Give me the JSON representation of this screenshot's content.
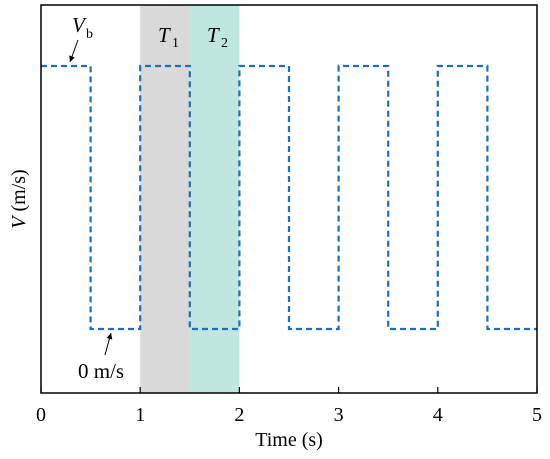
{
  "chart_data": {
    "type": "line",
    "title": "",
    "xlabel": "Time (s)",
    "ylabel_symbol": "V",
    "ylabel_unit": " (m/s)",
    "xlim": [
      0,
      5
    ],
    "x_ticks": [
      "0",
      "1",
      "2",
      "3",
      "4",
      "5"
    ],
    "ylim": [
      -0.25,
      1.25
    ],
    "y_ticks": [],
    "grid": false,
    "legend": "none",
    "series": [
      {
        "style": "dashed",
        "color": "#1f6fb5",
        "x": [
          0,
          0.5,
          0.5,
          1,
          1,
          1.5,
          1.5,
          2,
          2,
          2.5,
          2.5,
          3,
          3,
          3.5,
          3.5,
          4,
          4,
          4.5,
          4.5,
          5
        ],
        "y": [
          "Vb",
          "Vb",
          0,
          0,
          "Vb",
          "Vb",
          0,
          0,
          "Vb",
          "Vb",
          0,
          0,
          "Vb",
          "Vb",
          0,
          0,
          "Vb",
          "Vb",
          0,
          0
        ]
      }
    ],
    "shaded_regions": [
      {
        "x": [
          1,
          1.5
        ],
        "color": "#d9d9d9",
        "label_symbol": "T",
        "label_sub": "1"
      },
      {
        "x": [
          1.5,
          2
        ],
        "color": "#bfe6df",
        "label_symbol": "T",
        "label_sub": "2"
      }
    ],
    "annotations": [
      {
        "symbol": "V",
        "sub": "b",
        "points_to": "high level"
      },
      {
        "text": "0 m/s",
        "points_to": "low level"
      }
    ]
  }
}
